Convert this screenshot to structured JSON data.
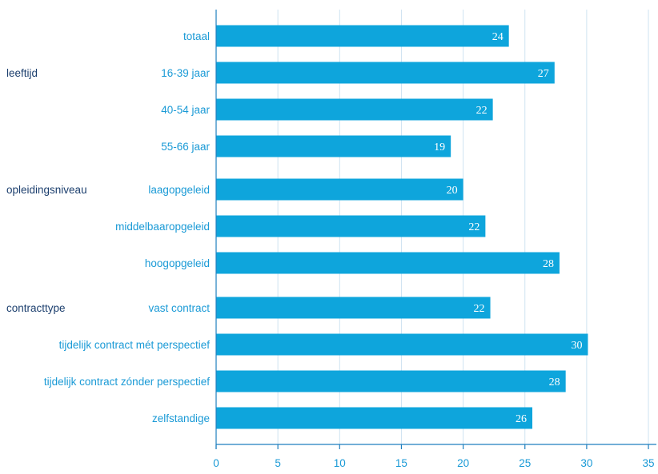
{
  "colors": {
    "bar": "#0ea5dc",
    "grid": "#cfe3f1",
    "axis": "#1f7fbf",
    "category_text": "#1a9ad6",
    "group_text": "#1c3f6e"
  },
  "chart_data": {
    "type": "bar",
    "orientation": "horizontal",
    "categories": [
      "totaal",
      "16-39 jaar",
      "40-54 jaar",
      "55-66 jaar",
      "laagopgeleid",
      "middelbaaropgeleid",
      "hoogopgeleid",
      "vast contract",
      "tijdelijk contract mét perspectief",
      "tijdelijk contract zónder perspectief",
      "zelfstandige"
    ],
    "values": [
      24,
      27,
      22,
      19,
      20,
      22,
      28,
      22,
      30,
      28,
      26
    ],
    "exact_values": [
      23.7,
      27.4,
      22.4,
      19.0,
      20.0,
      21.8,
      27.8,
      22.2,
      30.1,
      28.3,
      25.6
    ],
    "groups": [
      {
        "label": "leeftijd",
        "first_index": 1
      },
      {
        "label": "opleidingsniveau",
        "first_index": 4
      },
      {
        "label": "contracttype",
        "first_index": 7
      }
    ],
    "xticks": [
      "0",
      "5",
      "10",
      "15",
      "20",
      "25",
      "30",
      "35"
    ],
    "xlim": [
      0,
      36
    ],
    "grid": true,
    "title": "",
    "xlabel": "",
    "ylabel": ""
  }
}
